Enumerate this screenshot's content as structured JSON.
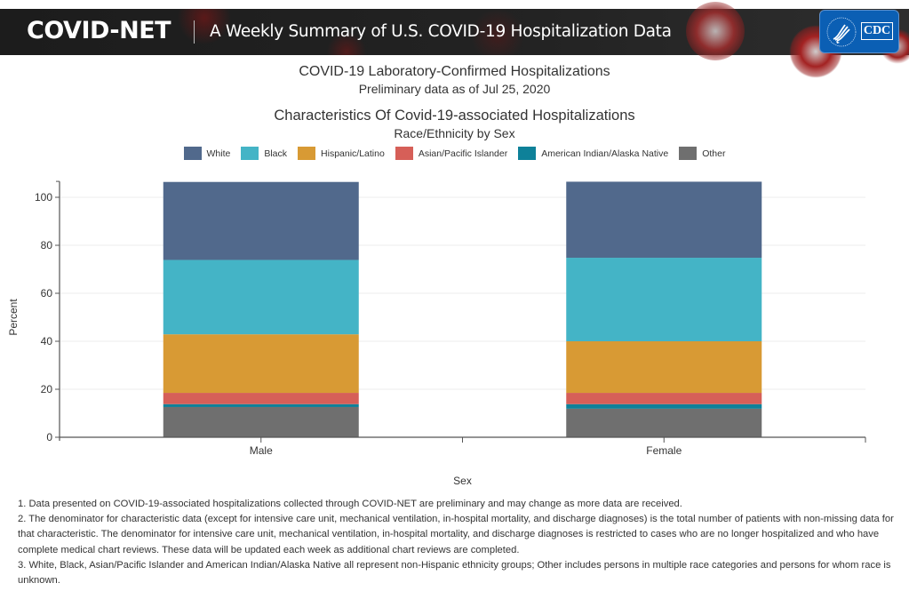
{
  "header": {
    "brand": "COVID-NET",
    "tagline": "A Weekly Summary of U.S. COVID-19 Hospitalization Data",
    "logo_text": "CDC"
  },
  "page": {
    "title": "COVID-19 Laboratory-Confirmed Hospitalizations",
    "subtitle": "Preliminary data as of Jul 25, 2020"
  },
  "colors": {
    "White": "#51698c",
    "Black": "#44b4c6",
    "Hispanic/Latino": "#d89a34",
    "Asian/Pacific Islander": "#d65f58",
    "American Indian/Alaska Native": "#0e8199",
    "Other": "#6f6f6f"
  },
  "chart_data": {
    "type": "bar",
    "stacked": true,
    "title": "Characteristics Of Covid-19-associated Hospitalizations",
    "subtitle": "Race/Ethnicity by Sex",
    "xlabel": "Sex",
    "ylabel": "Percent",
    "categories": [
      "Male",
      "Female"
    ],
    "ylim": [
      0,
      107
    ],
    "yticks": [
      0,
      20,
      40,
      60,
      80,
      100
    ],
    "grid": true,
    "legend_position": "top-center",
    "series": [
      {
        "name": "Other",
        "values": [
          12.6,
          11.9
        ]
      },
      {
        "name": "American Indian/Alaska Native",
        "values": [
          1.2,
          1.9
        ]
      },
      {
        "name": "Asian/Pacific Islander",
        "values": [
          4.7,
          4.7
        ]
      },
      {
        "name": "Hispanic/Latino",
        "values": [
          24.4,
          21.5
        ]
      },
      {
        "name": "Black",
        "values": [
          31.0,
          34.8
        ]
      },
      {
        "name": "White",
        "values": [
          32.5,
          31.7
        ]
      }
    ],
    "legend_order": [
      "White",
      "Black",
      "Hispanic/Latino",
      "Asian/Pacific Islander",
      "American Indian/Alaska Native",
      "Other"
    ]
  },
  "footnotes": [
    "1. Data presented on COVID-19-associated hospitalizations collected through COVID-NET are preliminary and may change as more data are received.",
    "2. The denominator for characteristic data (except for intensive care unit, mechanical ventilation, in-hospital mortality, and discharge diagnoses) is the total number of patients with non-missing data for that characteristic. The denominator for intensive care unit, mechanical ventilation, in-hospital mortality, and discharge diagnoses is restricted to cases who are no longer hospitalized and who have complete medical chart reviews. These data will be updated each week as additional chart reviews are completed.",
    "3. White, Black, Asian/Pacific Islander and American Indian/Alaska Native all represent non-Hispanic ethnicity groups; Other includes persons in multiple race categories and persons for whom race is unknown."
  ]
}
